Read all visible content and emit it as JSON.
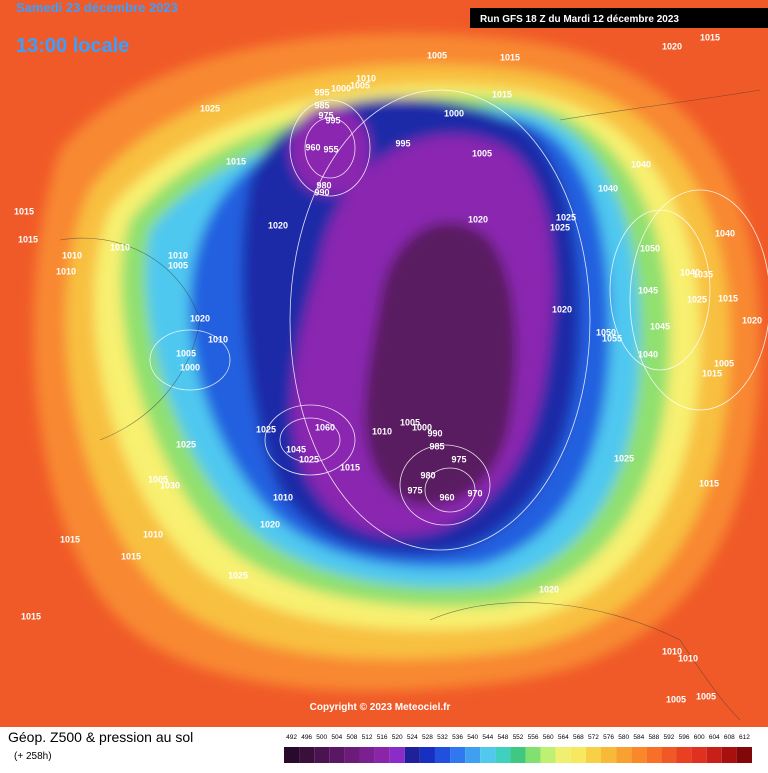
{
  "header": {
    "date": "Samedi 23 décembre 2023",
    "local_time": "13:00 locale",
    "run": "Run GFS 18 Z du Mardi 12 décembre 2023",
    "copyright": "Copyright © 2023 Meteociel.fr"
  },
  "footer": {
    "title": "Géop. Z500 & pression au sol",
    "subtitle": "(+ 258h)"
  },
  "colorbar": {
    "values": [
      492,
      496,
      500,
      504,
      508,
      512,
      516,
      520,
      524,
      528,
      532,
      536,
      540,
      544,
      548,
      552,
      556,
      560,
      564,
      568,
      572,
      576,
      580,
      584,
      588,
      592,
      596,
      600,
      604,
      608,
      612
    ],
    "colors": [
      "#2a0a2a",
      "#3a0f3c",
      "#4a1450",
      "#5a1864",
      "#6a1c78",
      "#7a2090",
      "#8a24a8",
      "#8c2cc8",
      "#20209a",
      "#1830c0",
      "#2050e0",
      "#3078f0",
      "#40a0f0",
      "#50c8f0",
      "#40d0c0",
      "#40c880",
      "#80e070",
      "#c0f070",
      "#f0f070",
      "#f8e860",
      "#f8d048",
      "#f8b838",
      "#f8a030",
      "#f88828",
      "#f87028",
      "#f05828",
      "#e84020",
      "#e03020",
      "#c82018",
      "#a81010",
      "#800808"
    ]
  },
  "pressure_labels": [
    "1020",
    "1015",
    "1005",
    "1015",
    "1010",
    "1000",
    "995",
    "1005",
    "1025",
    "1000",
    "1015",
    "985",
    "975",
    "995",
    "960",
    "955",
    "995",
    "1005",
    "1015",
    "1040",
    "980",
    "990",
    "1040",
    "1015",
    "1020",
    "1020",
    "1025",
    "1025",
    "1015",
    "1010",
    "1010",
    "1010",
    "1005",
    "1050",
    "1010",
    "1040",
    "1040",
    "1035",
    "1045",
    "1025",
    "1015",
    "1020",
    "1020",
    "1020",
    "1010",
    "1050",
    "1055",
    "1045",
    "1005",
    "1040",
    "1000",
    "1005",
    "1015",
    "1025",
    "1060",
    "1010",
    "1005",
    "1000",
    "990",
    "985",
    "1025",
    "1045",
    "1025",
    "1015",
    "975",
    "980",
    "1025",
    "1005",
    "1030",
    "975",
    "960",
    "970",
    "1010",
    "1015",
    "1020",
    "1015",
    "1010",
    "1015",
    "1025",
    "1020",
    "1015",
    "1010",
    "1010",
    "1005",
    "1005"
  ]
}
